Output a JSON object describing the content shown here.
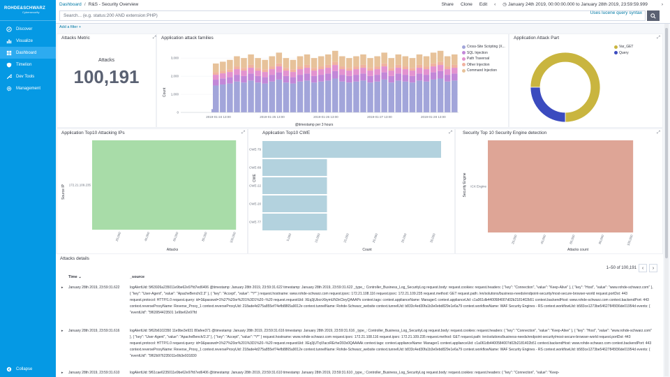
{
  "brand": {
    "line1": "ROHDE&SCHWARZ",
    "line2": "Cybersecurity"
  },
  "nav": [
    {
      "label": "Discover",
      "icon": "compass-icon"
    },
    {
      "label": "Visualize",
      "icon": "chart-icon"
    },
    {
      "label": "Dashboard",
      "icon": "dashboard-icon",
      "active": true
    },
    {
      "label": "Timelion",
      "icon": "shield-icon"
    },
    {
      "label": "Dev Tools",
      "icon": "wrench-icon"
    },
    {
      "label": "Management",
      "icon": "gear-icon"
    }
  ],
  "collapse_label": "Collapse",
  "breadcrumb": {
    "root": "Dashboard",
    "sep": "/",
    "current": "R&S - Security Overview"
  },
  "toplinks": {
    "share": "Share",
    "clone": "Clone",
    "edit": "Edit",
    "timerange": "January 24th 2019, 00:00:00.000 to January 28th 2019, 23:59:59.999"
  },
  "search": {
    "placeholder": "Search... (e.g. status:200 AND extension:PHP)",
    "lucene": "Uses lucene query syntax"
  },
  "add_filter": "Add a filter +",
  "panels": {
    "metric": {
      "title": "Attacks Metric",
      "label": "Attacks",
      "value": "100,191"
    },
    "families": {
      "title": "Application attack families",
      "ylabel": "Count",
      "xlabel": "@timestamp per 3 hours"
    },
    "part": {
      "title": "Application Attack Part"
    },
    "ips": {
      "title": "Application Top10 Attacking IPs",
      "ylabel": "Source IP",
      "xlabel": "Attacks"
    },
    "cwe": {
      "title": "Application Top10 CWE",
      "ylabel": "CWE",
      "xlabel": "Count"
    },
    "engine": {
      "title": "Security Top 10 Security Engine detection",
      "ylabel": "Security Engine",
      "xlabel": "Attacks count"
    }
  },
  "chart_data": [
    {
      "type": "bar",
      "title": "Application attack families",
      "stacked": true,
      "xlabel": "@timestamp per 3 hours",
      "ylabel": "Count",
      "x_ticks": [
        "2019-01-24 13:00",
        "2019-01-25 13:00",
        "2019-01-26 13:00",
        "2019-01-27 13:00",
        "2019-01-28 13:00"
      ],
      "y_ticks": [
        "0",
        "1,000",
        "2,000",
        "3,000"
      ],
      "ylim": [
        0,
        3700
      ],
      "series": [
        {
          "name": "Cross-Site Scripting (X...",
          "color": "#a2a5da"
        },
        {
          "name": "SQL Injection",
          "color": "#c287d8"
        },
        {
          "name": "Path Traversal",
          "color": "#e392cf"
        },
        {
          "name": "Other Injection",
          "color": "#f0b2a0"
        },
        {
          "name": "Command Injection",
          "color": "#e7c29a"
        }
      ],
      "approx_totals_per_bucket": [
        2700,
        2800,
        2900,
        3100,
        3000,
        3200,
        3000,
        2900,
        3100,
        3300,
        3000,
        2900,
        3100,
        3200,
        3000,
        3100,
        3200,
        3400,
        3100,
        3000,
        3100,
        3200,
        3000,
        3100,
        3300,
        3000,
        3200,
        3100,
        3000,
        3200,
        3100,
        3300,
        3400,
        3100,
        3200
      ],
      "legend_position": "right"
    },
    {
      "type": "pie",
      "title": "Application Attack Part",
      "donut": true,
      "slices": [
        {
          "label": "Var_GET",
          "value": 75,
          "color": "#c9b53f"
        },
        {
          "label": "Query",
          "value": 25,
          "color": "#3b4bbf"
        }
      ],
      "legend_position": "top-right"
    },
    {
      "type": "bar",
      "orientation": "horizontal",
      "title": "Application Top10 Attacking IPs",
      "categories": [
        "172.21.109.235"
      ],
      "values": [
        100191
      ],
      "color": "#a8dca8",
      "x_ticks": [
        "20,000",
        "40,000",
        "60,000",
        "80,000",
        "100,000"
      ]
    },
    {
      "type": "bar",
      "orientation": "horizontal",
      "title": "Application Top10 CWE",
      "categories": [
        "CWE-79",
        "CWE-89",
        "CWE-22",
        "CWE-20",
        "CWE-77"
      ],
      "values": [
        31000,
        11200,
        11200,
        11200,
        11200
      ],
      "color": "#b3d2de",
      "x_ticks": [
        "5,000",
        "10,000",
        "15,000",
        "20,000",
        "25,000",
        "30,000"
      ]
    },
    {
      "type": "bar",
      "orientation": "horizontal",
      "title": "Security Top 10 Security Engine detection",
      "categories": [
        "ICX Engine"
      ],
      "values": [
        100191
      ],
      "color": "#dea596",
      "x_ticks": [
        "20,000",
        "40,000",
        "60,000",
        "80,000",
        "100,000"
      ]
    }
  ],
  "details": {
    "title": "Attacks details",
    "pagination": "1–50 of 100,191",
    "col_time": "Time",
    "col_source": "_source",
    "rows": [
      {
        "time": "January 28th 2019, 23:59:31.622",
        "src": "logAlertUid: 5f63926a235011e9be62e97fd7ed6406 @timestamp: January 28th 2019, 23:59:31.622 timestamp: January 28th 2019, 23:59:31.622 _type_: Controller_Business_Log_SecurityLog request.body: request.cookies: request.headers: { \"key\": \"Connection\", \"value\": \"Keep-Alive\" }, { \"key\": \"Host\", \"value\": \"www.rohde-schwarz.com\" }, { \"key\": \"User-Agent\", \"value\": \"ApacheBench/2.3\" }, { \"key\": \"Accept\", \"value\": \"*/*\" } request.hostname: www.rohde-schwarz.com request.ipsrc: 172.21.108.116 request.ipsrc: 172.21.109.235 request.method: GET request.path: /en/solutions/business-needs/endpoint-security/most-secure-browser-world request.portDst: 443 request.protocol: HTTP/1.0 request.query: id=3&passwd=1%27%20or%201%3D1%20--%20 request.requestUid: XEq3jUbcnXbymUN3nCleyQAAAPs context.tags: context.applianceName: Manager1 context.applianceUid: c1a061db4400584007d02b2181402b51 context.backendHost: www.rohde-schwarz.com context.backendPort: 443 context.reverseProxyName: Reverse_Proxy_1 context.reverseProxyUid: 218ade4d275a855ef74efb8865a9012e context.tunnelName: Rohde-Schwarz_website context.tunnelUid: b833c4ed30fa1b3e0ebd829e1e6a79 context.workflowName: WAF Security Engines - RS context.workflowUid: b583ce1273be54627845f36de01954d events: { \"eventUid\": \"5f63954423501 1e9be62e97fd"
      },
      {
        "time": "January 28th 2019, 23:59:31.616",
        "src": "logAlertUid: 5f62b6102350 11e9be3e931 80afee371 @timestamp: January 28th 2019, 23:59:31.616 timestamp: January 28th 2019, 23:59:31.616 _type_: Controller_Business_Log_SecurityLog request.body: request.cookies: request.headers: { \"key\": \"Connection\", \"value\": \"Keep-Alive\" }, { \"key\": \"Host\", \"value\": \"www.rohde-schwarz.com\" }, { \"key\": \"User-Agent\", \"value\": \"ApacheBench/2.3\" }, { \"key\": \"Accept\", \"value\": \"*/*\" } request.hostname: www.rohde-schwarz.com request.ipsrc: 172.21.108.116 request.ipsrc: 172.21.109.235 request.method: GET request.path: /en/solutions/business-needs/endpoint-security/most-secure-browser-world request.portDst: 443 request.protocol: HTTP/1.0 request.query: id=3&passwd=1%27%20or%201%3D1%20--%20 request.requestUid: XEq3jUTqVIacxRErheD93x0QAAAAk context.tags: context.applianceName: Manager1 context.applianceUid: c1a061db4400584007d02b2181402b51 context.backendHost: www.rohde-schwarz.com context.backendPort: 443 context.reverseProxyName: Reverse_Proxy_1 context.reverseProxyUid: 218ade4d275a855ef74efb8865a9012e context.tunnelName: Rohde-Schwarz_website context.tunnelUid: b833c4ed30fa1b3e0ebd829e1e6a79 context.workflowName: WAF Security Engines - RS context.workflowUid: b583ce1273be54627845f36de01954d events: { \"eventUid\": \"5f62b976235011e9b3e931830"
      },
      {
        "time": "January 28th 2019, 23:59:31.610",
        "src": "logAlertUid: 5f61cae6235011e9be62e97fd7ed6406 @timestamp: January 28th 2019, 23:59:31.610 timestamp: January 28th 2019, 23:59:31.610 _type_: Controller_Business_Log_SecurityLog request.body: request.cookies: request.headers: { \"key\": \"Connection\", \"value\": \"Keep-"
      }
    ]
  }
}
